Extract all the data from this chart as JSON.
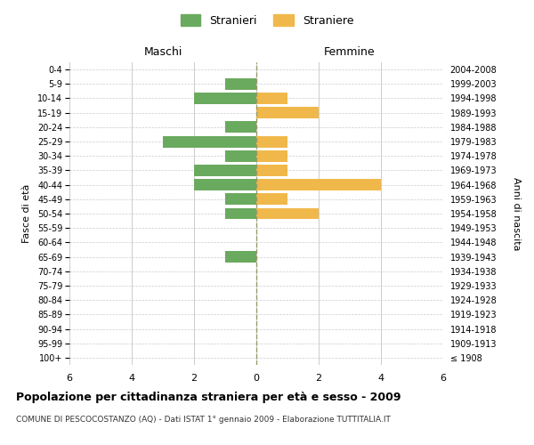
{
  "age_groups": [
    "100+",
    "95-99",
    "90-94",
    "85-89",
    "80-84",
    "75-79",
    "70-74",
    "65-69",
    "60-64",
    "55-59",
    "50-54",
    "45-49",
    "40-44",
    "35-39",
    "30-34",
    "25-29",
    "20-24",
    "15-19",
    "10-14",
    "5-9",
    "0-4"
  ],
  "birth_years": [
    "≤ 1908",
    "1909-1913",
    "1914-1918",
    "1919-1923",
    "1924-1928",
    "1929-1933",
    "1934-1938",
    "1939-1943",
    "1944-1948",
    "1949-1953",
    "1954-1958",
    "1959-1963",
    "1964-1968",
    "1969-1973",
    "1974-1978",
    "1979-1983",
    "1984-1988",
    "1989-1993",
    "1994-1998",
    "1999-2003",
    "2004-2008"
  ],
  "maschi": [
    0,
    0,
    0,
    0,
    0,
    0,
    0,
    1,
    0,
    0,
    1,
    1,
    2,
    2,
    1,
    3,
    1,
    0,
    2,
    1,
    0
  ],
  "femmine": [
    0,
    0,
    0,
    0,
    0,
    0,
    0,
    0,
    0,
    0,
    2,
    1,
    4,
    1,
    1,
    1,
    0,
    2,
    1,
    0,
    0
  ],
  "maschi_color": "#6aaa5e",
  "femmine_color": "#f0b84b",
  "title": "Popolazione per cittadinanza straniera per età e sesso - 2009",
  "subtitle": "COMUNE DI PESCOCOSTANZO (AQ) - Dati ISTAT 1° gennaio 2009 - Elaborazione TUTTITALIA.IT",
  "xlabel_left": "Maschi",
  "xlabel_right": "Femmine",
  "ylabel_left": "Fasce di età",
  "ylabel_right": "Anni di nascita",
  "legend_stranieri": "Stranieri",
  "legend_straniere": "Straniere",
  "xlim": 6,
  "background_color": "#ffffff",
  "grid_color": "#cccccc",
  "bar_height": 0.8
}
